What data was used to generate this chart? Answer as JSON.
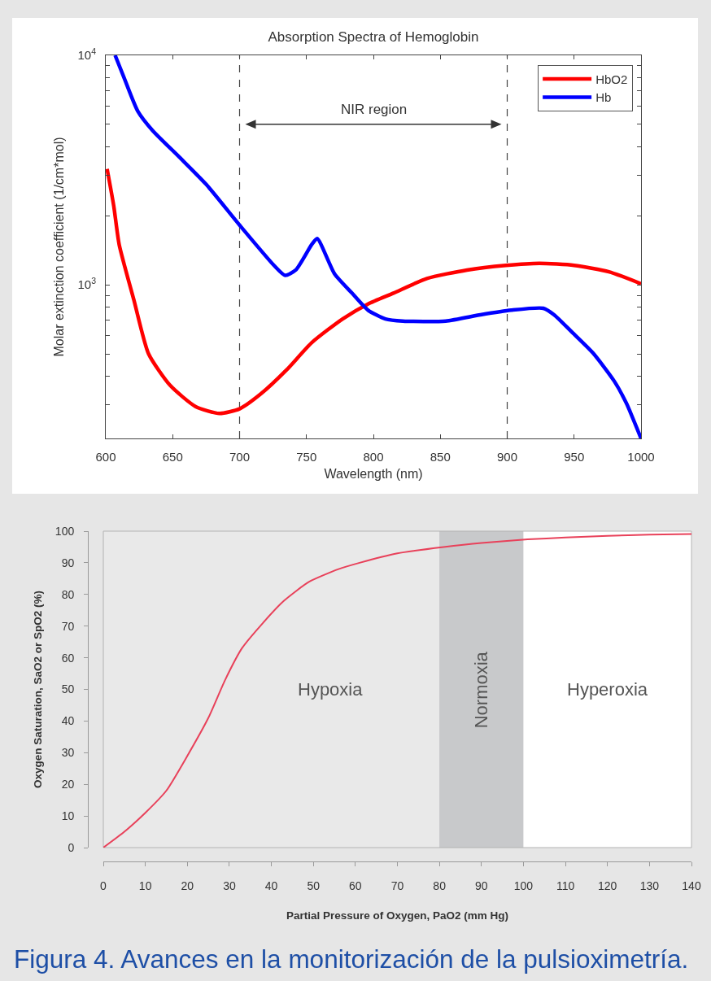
{
  "chart_data": [
    {
      "type": "line",
      "title": "Absorption Spectra of Hemoglobin",
      "xlabel": "Wavelength (nm)",
      "ylabel": "Molar extinction coefficient (1/cm*mol)",
      "log": "y",
      "xlim": [
        600,
        1000
      ],
      "xticks": [
        600,
        650,
        700,
        750,
        800,
        850,
        900,
        950,
        1000
      ],
      "ylim": [
        214,
        10000
      ],
      "yticks": [
        {
          "value": 300,
          "label": null
        },
        {
          "value": 400,
          "label": null
        },
        {
          "value": 500,
          "label": null
        },
        {
          "value": 600,
          "label": null
        },
        {
          "value": 700,
          "label": null
        },
        {
          "value": 800,
          "label": null
        },
        {
          "value": 900,
          "label": null
        },
        {
          "value": 1000,
          "label": "10$^{3}$"
        },
        {
          "value": 2000,
          "label": null
        },
        {
          "value": 3000,
          "label": null
        },
        {
          "value": 4000,
          "label": null
        },
        {
          "value": 5000,
          "label": null
        },
        {
          "value": 6000,
          "label": null
        },
        {
          "value": 7000,
          "label": null
        },
        {
          "value": 8000,
          "label": null
        },
        {
          "value": 9000,
          "label": null
        },
        {
          "value": 10000,
          "label": "10$^{4}$"
        }
      ],
      "legend": "top right",
      "ref_lines": [
        {
          "axis": "x",
          "value": 700,
          "color": "#444444",
          "line_style": "dashed"
        },
        {
          "axis": "x",
          "value": 900,
          "color": "#444444",
          "line_style": "dashed"
        }
      ],
      "annotations": [
        "NIR region"
      ],
      "series": [
        {
          "name": "HbO2",
          "color": "#ff0000",
          "x": [
            601,
            606,
            610,
            621,
            632,
            648,
            667,
            685,
            700,
            716,
            735,
            754,
            777,
            796,
            815,
            840,
            870,
            899,
            924,
            950,
            976,
            1000
          ],
          "values": [
            3200,
            2200,
            1500,
            860,
            500,
            365,
            295,
            275,
            288,
            335,
            425,
            560,
            710,
            825,
            920,
            1065,
            1160,
            1215,
            1240,
            1215,
            1140,
            1010
          ]
        },
        {
          "name": "Hb",
          "color": "#0000ff",
          "x": [
            607,
            614,
            624,
            635,
            655,
            675,
            700,
            726,
            734,
            742,
            754,
            758,
            771,
            784,
            796,
            809,
            822,
            854,
            880,
            903,
            927,
            935,
            948,
            964,
            980,
            989,
            1000
          ],
          "values": [
            10000,
            7900,
            5700,
            4700,
            3600,
            2740,
            1820,
            1210,
            1100,
            1160,
            1500,
            1590,
            1115,
            920,
            775,
            710,
            695,
            695,
            740,
            775,
            790,
            740,
            625,
            505,
            380,
            305,
            214
          ]
        }
      ]
    },
    {
      "type": "line",
      "xlabel": "Partial Pressure of Oxygen, PaO2 (mm Hg)",
      "ylabel": "Oxygen Saturation, SaO2 or SpO2 (%)",
      "xlim": [
        0,
        140
      ],
      "xticks": [
        0,
        10,
        20,
        30,
        40,
        50,
        60,
        70,
        80,
        90,
        100,
        110,
        120,
        130,
        140
      ],
      "ylim": [
        0,
        100
      ],
      "yticks": [
        0,
        10,
        20,
        30,
        40,
        50,
        60,
        70,
        80,
        90,
        100
      ],
      "bands": [
        {
          "axis": "x",
          "from": 0,
          "to": 80,
          "label": "Hypoxia",
          "color": "#e9e9e9"
        },
        {
          "axis": "x",
          "from": 80,
          "to": 100,
          "label": "Normoxia",
          "color": "#c8c9cb"
        },
        {
          "axis": "x",
          "from": 100,
          "to": 140,
          "label": "Hyperoxia",
          "color": "#ffffff"
        }
      ],
      "annotations": [
        "Figura 4. Avances en la monitorización de la pulsioximetría."
      ],
      "series": [
        {
          "color": "#e8415a",
          "x": [
            0,
            5,
            10,
            15,
            20,
            25,
            29,
            33,
            38,
            43,
            49,
            56,
            61,
            70,
            81,
            90,
            101,
            110,
            120,
            130,
            140
          ],
          "values": [
            0,
            5,
            11,
            18,
            29,
            41,
            53,
            63,
            71,
            78,
            84,
            88,
            90,
            93,
            95,
            96.3,
            97.4,
            98,
            98.5,
            98.9,
            99.1
          ]
        }
      ]
    }
  ]
}
